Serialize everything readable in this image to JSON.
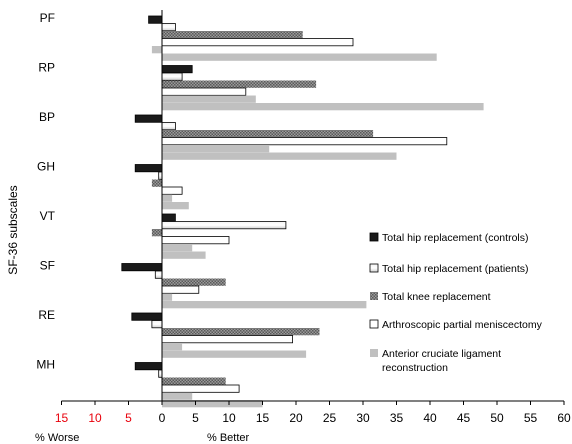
{
  "chart_data": {
    "type": "bar",
    "orientation": "horizontal",
    "ylabel": "SF-36 subscales",
    "categories": [
      "PF",
      "RP",
      "BP",
      "GH",
      "VT",
      "SF",
      "RE",
      "MH"
    ],
    "xlim": [
      -15,
      60
    ],
    "xticks": [
      -15,
      -10,
      -5,
      0,
      5,
      10,
      15,
      20,
      25,
      30,
      35,
      40,
      45,
      50,
      55,
      60
    ],
    "xtick_labels": [
      "15",
      "10",
      "5",
      "0",
      "5",
      "10",
      "15",
      "20",
      "25",
      "30",
      "35",
      "40",
      "45",
      "50",
      "55",
      "60"
    ],
    "negative_tick_color": "#e8000b",
    "xlabel_left": "% Worse",
    "xlabel_right": "% Better",
    "grid": false,
    "legend_position": "right",
    "series": [
      {
        "name": "Total hip replacement (controls)",
        "pattern": "solid-black",
        "color": "#1a1a1a",
        "values": [
          -2.0,
          4.5,
          -4.0,
          -4.0,
          2.0,
          -6.0,
          -4.5,
          -4.0
        ]
      },
      {
        "name": "Total hip replacement (patients)",
        "pattern": "light-gradient",
        "color": "#d9d9d9",
        "values": [
          2.0,
          3.0,
          2.0,
          -0.5,
          18.5,
          -1.0,
          -1.5,
          -0.5
        ]
      },
      {
        "name": "Total knee replacement",
        "pattern": "dark-hatch",
        "color": "#7f7f7f",
        "values": [
          21.0,
          23.0,
          31.5,
          -1.5,
          -1.5,
          9.5,
          23.5,
          9.5
        ]
      },
      {
        "name": "Arthroscopic partial meniscectomy",
        "pattern": "white-dark-border",
        "color": "#ffffff",
        "values": [
          28.5,
          12.5,
          42.5,
          3.0,
          10.0,
          5.5,
          19.5,
          11.5
        ]
      },
      {
        "name": "Anterior cruciate ligament reconstruction",
        "pattern": "solid-light-grey",
        "color": "#c0c0c0",
        "values": [
          -1.5,
          14.0,
          16.0,
          1.5,
          4.5,
          1.5,
          3.0,
          4.5
        ]
      },
      {
        "name": "",
        "pattern": "solid-light-grey",
        "color": "#c0c0c0",
        "values": [
          41.0,
          48.0,
          35.0,
          4.0,
          6.5,
          30.5,
          21.5,
          15.0
        ]
      }
    ]
  }
}
